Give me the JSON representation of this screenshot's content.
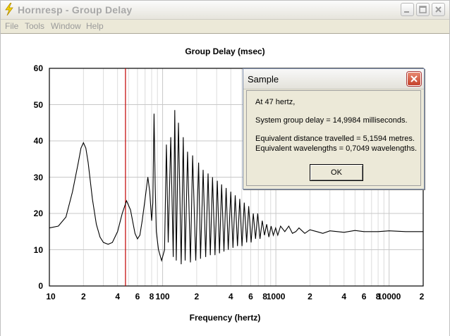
{
  "window": {
    "title": "Hornresp - Group Delay",
    "menu": [
      "File",
      "Tools",
      "Window",
      "Help"
    ]
  },
  "chart_data": {
    "type": "line",
    "title": "Group Delay (msec)",
    "xlabel": "Frequency (hertz)",
    "ylabel": "",
    "xscale": "log",
    "xlim": [
      10,
      20000
    ],
    "ylim": [
      0,
      60
    ],
    "grid": true,
    "yticks": [
      "0",
      "10",
      "20",
      "30",
      "40",
      "50",
      "60"
    ],
    "xtick_labels": [
      {
        "value": 10,
        "label": "10"
      },
      {
        "value": 20,
        "label": "2"
      },
      {
        "value": 40,
        "label": "4"
      },
      {
        "value": 60,
        "label": "6"
      },
      {
        "value": 80,
        "label": "8"
      },
      {
        "value": 100,
        "label": "100"
      },
      {
        "value": 200,
        "label": "2"
      },
      {
        "value": 400,
        "label": "4"
      },
      {
        "value": 600,
        "label": "6"
      },
      {
        "value": 800,
        "label": "8"
      },
      {
        "value": 1000,
        "label": "1000"
      },
      {
        "value": 2000,
        "label": "2"
      },
      {
        "value": 4000,
        "label": "4"
      },
      {
        "value": 6000,
        "label": "6"
      },
      {
        "value": 8000,
        "label": "8"
      },
      {
        "value": 10000,
        "label": "10000"
      },
      {
        "value": 20000,
        "label": "2"
      }
    ],
    "marker_frequency": 47,
    "series": [
      {
        "x": [
          10,
          12,
          14,
          16,
          18,
          19,
          20,
          21,
          22,
          24,
          26,
          28,
          30,
          33,
          36,
          40,
          44,
          48,
          52,
          55,
          57,
          60,
          63,
          66,
          70,
          74,
          77,
          80,
          82,
          84,
          86,
          88,
          92,
          98,
          104,
          108,
          112,
          118,
          124,
          128,
          132,
          138,
          146,
          152,
          158,
          166,
          176,
          184,
          196,
          208,
          216,
          228,
          240,
          252,
          264,
          276,
          290,
          304,
          318,
          332,
          348,
          364,
          380,
          400,
          418,
          438,
          458,
          480,
          502,
          526,
          552,
          576,
          604,
          632,
          662,
          692,
          724,
          758,
          794,
          830,
          868,
          908,
          950,
          995,
          1040,
          1100,
          1200,
          1300,
          1400,
          1500,
          1600,
          1800,
          2000,
          2300,
          2600,
          3000,
          3500,
          4000,
          5000,
          6000,
          8000,
          10000,
          14000,
          20000
        ],
        "y": [
          16,
          16.5,
          19,
          26,
          34,
          38,
          39.5,
          38,
          34,
          24,
          17,
          13.5,
          12,
          11.5,
          12,
          15,
          20,
          23.5,
          21,
          17,
          14.5,
          13,
          14,
          18,
          24,
          30,
          26,
          18,
          23,
          47.5,
          28,
          15,
          10,
          7,
          10,
          39,
          12,
          41,
          8,
          48.5,
          7,
          45,
          6,
          41,
          7,
          37,
          6.5,
          36,
          7,
          34,
          7.5,
          32,
          8,
          31,
          8.5,
          30,
          8.5,
          29,
          9,
          28,
          9.5,
          27,
          10,
          26,
          10.5,
          25,
          11,
          24,
          11,
          23,
          12,
          22,
          12,
          20,
          13,
          20,
          13,
          18,
          14,
          17,
          13.5,
          16.5,
          14,
          16,
          14,
          16.5,
          15,
          16.5,
          14.5,
          15,
          16,
          14.5,
          15.5,
          15,
          14.5,
          15.2,
          15,
          14.8,
          15.3,
          15,
          15,
          15.2,
          15,
          15
        ]
      }
    ]
  },
  "dialog": {
    "title": "Sample",
    "line1": "At 47 hertz,",
    "line2": "System group delay = 14,9984 milliseconds.",
    "line3": "Equivalent distance travelled = 5,1594 metres.",
    "line4": "Equivalent wavelengths = 0,7049 wavelengths.",
    "ok_label": "OK"
  }
}
